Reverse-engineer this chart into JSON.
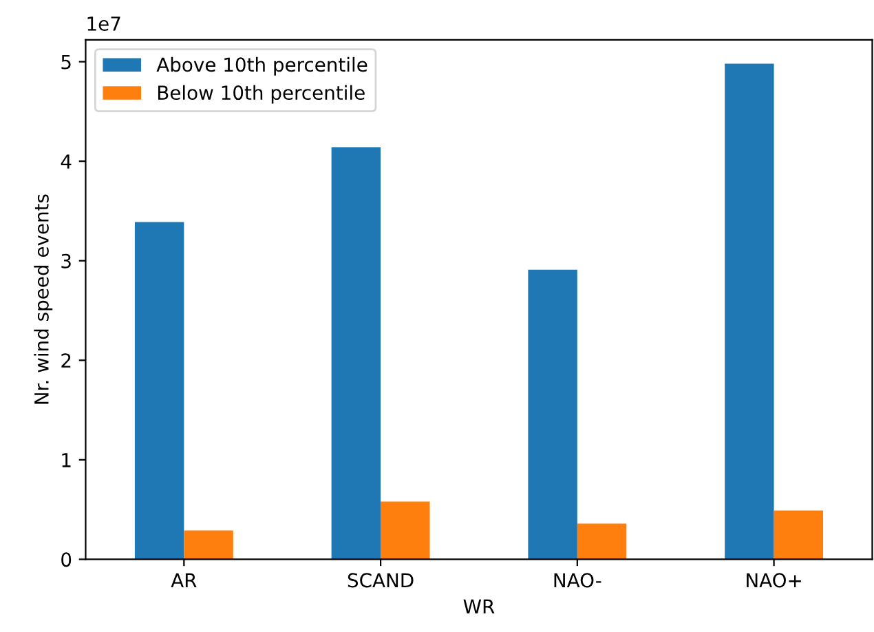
{
  "chart_data": {
    "type": "bar",
    "xlabel": "WR",
    "ylabel": "Nr. wind speed events",
    "categories": [
      "AR",
      "SCAND",
      "NAO-",
      "NAO+"
    ],
    "series": [
      {
        "name": "Above 10th percentile",
        "color": "#1f77b4",
        "values": [
          3.39,
          4.14,
          2.91,
          4.98
        ]
      },
      {
        "name": "Below 10th percentile",
        "color": "#ff7f0e",
        "values": [
          0.29,
          0.58,
          0.36,
          0.49
        ]
      }
    ],
    "ylim": [
      0,
      5.22
    ],
    "yticks": [
      0,
      1,
      2,
      3,
      4,
      5
    ],
    "annotations": [
      "1e7"
    ],
    "legend": "top left",
    "grid": false
  }
}
